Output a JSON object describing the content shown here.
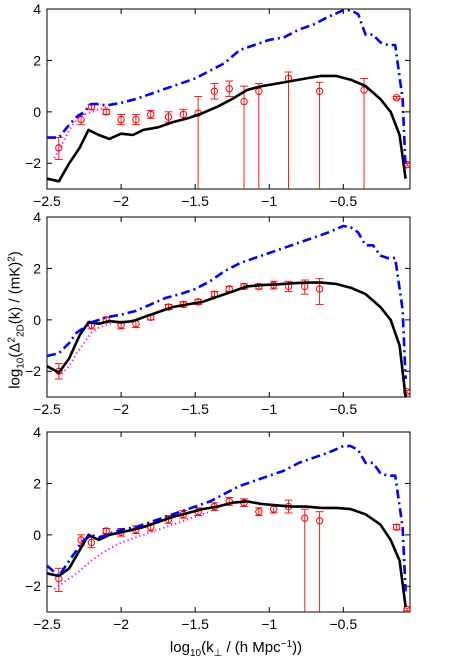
{
  "chart_data": [
    {
      "type": "line",
      "panel": "top",
      "xlim": [
        -2.5,
        -0.05
      ],
      "ylim": [
        -3,
        4
      ],
      "xticks": [
        -2.5,
        -2,
        -1.5,
        -1,
        -0.5
      ],
      "xtick_labels": [
        "−2.5",
        "−2",
        "−1.5",
        "−1",
        "−0.5"
      ],
      "yticks": [
        -2,
        0,
        2,
        4
      ],
      "ytick_labels": [
        "−2",
        "0",
        "2",
        "4"
      ],
      "series": [
        {
          "style": "dashed-blue",
          "color": "#0000ff",
          "x": [
            -2.5,
            -2.42,
            -2.35,
            -2.3,
            -2.25,
            -2.2,
            -2.15,
            -2.1,
            -2.0,
            -1.9,
            -1.8,
            -1.7,
            -1.6,
            -1.5,
            -1.4,
            -1.3,
            -1.2,
            -1.1,
            -1.0,
            -0.9,
            -0.8,
            -0.7,
            -0.6,
            -0.5,
            -0.45,
            -0.4,
            -0.35,
            -0.3,
            -0.25,
            -0.2,
            -0.15,
            -0.1,
            -0.08
          ],
          "y": [
            -1.0,
            -1.0,
            -0.5,
            -0.2,
            0.0,
            0.3,
            0.3,
            0.25,
            0.35,
            0.5,
            0.7,
            0.9,
            1.1,
            1.3,
            1.6,
            1.9,
            2.4,
            2.6,
            2.8,
            2.9,
            3.2,
            3.4,
            3.7,
            3.95,
            3.95,
            3.8,
            3.0,
            3.0,
            2.7,
            2.6,
            2.6,
            0.5,
            -2.2
          ]
        },
        {
          "style": "dotted-magenta",
          "color": "#ff00ff",
          "x": [
            -2.45,
            -2.4,
            -2.35,
            -2.3,
            -2.25,
            -2.2,
            -2.15,
            -2.1
          ],
          "y": [
            -1.8,
            -1.3,
            -0.7,
            -0.3,
            -0.1,
            0.0,
            0.1,
            0.2
          ]
        },
        {
          "style": "solid-black",
          "color": "#000000",
          "x": [
            -2.5,
            -2.42,
            -2.35,
            -2.28,
            -2.22,
            -2.15,
            -2.08,
            -2.0,
            -1.92,
            -1.85,
            -1.75,
            -1.65,
            -1.55,
            -1.45,
            -1.35,
            -1.25,
            -1.15,
            -1.05,
            -0.95,
            -0.85,
            -0.75,
            -0.65,
            -0.55,
            -0.45,
            -0.35,
            -0.25,
            -0.18,
            -0.12,
            -0.08
          ],
          "y": [
            -2.6,
            -2.7,
            -2.0,
            -1.4,
            -0.7,
            -0.9,
            -1.05,
            -0.85,
            -0.9,
            -0.7,
            -0.6,
            -0.4,
            -0.25,
            -0.05,
            0.2,
            0.5,
            0.85,
            1.0,
            1.1,
            1.2,
            1.3,
            1.4,
            1.4,
            1.25,
            1.0,
            0.5,
            0.0,
            -0.9,
            -2.6
          ]
        }
      ],
      "error_points": [
        {
          "x": -2.42,
          "y": -1.4,
          "lo": -1.85,
          "hi": -1.0
        },
        {
          "x": -2.27,
          "y": -0.3,
          "lo": -0.5,
          "hi": -0.1
        },
        {
          "x": -2.2,
          "y": 0.2,
          "lo": 0.1,
          "hi": 0.3
        },
        {
          "x": -2.1,
          "y": 0.0,
          "lo": -0.1,
          "hi": 0.1
        },
        {
          "x": -2.0,
          "y": -0.3,
          "lo": -0.5,
          "hi": -0.1
        },
        {
          "x": -1.9,
          "y": -0.3,
          "lo": -0.5,
          "hi": -0.1
        },
        {
          "x": -1.8,
          "y": -0.1,
          "lo": -0.25,
          "hi": 0.05
        },
        {
          "x": -1.68,
          "y": -0.2,
          "lo": -0.4,
          "hi": 0.0
        },
        {
          "x": -1.58,
          "y": -0.1,
          "lo": -0.3,
          "hi": 0.1
        },
        {
          "x": -1.48,
          "y": -0.05,
          "lo": -3,
          "hi": 0.6
        },
        {
          "x": -1.37,
          "y": 0.8,
          "lo": 0.5,
          "hi": 1.1
        },
        {
          "x": -1.27,
          "y": 0.9,
          "lo": 0.6,
          "hi": 1.2
        },
        {
          "x": -1.17,
          "y": 0.4,
          "lo": -3,
          "hi": 1.0
        },
        {
          "x": -1.07,
          "y": 0.8,
          "lo": -3,
          "hi": 1.1
        },
        {
          "x": -0.87,
          "y": 1.3,
          "lo": -3,
          "hi": 1.55
        },
        {
          "x": -0.66,
          "y": 0.8,
          "lo": -3,
          "hi": 1.15
        },
        {
          "x": -0.36,
          "y": 0.85,
          "lo": -3,
          "hi": 1.3
        },
        {
          "x": -0.14,
          "y": 0.55,
          "lo": 0.5,
          "hi": 0.6
        },
        {
          "x": -0.07,
          "y": -2.05,
          "lo": -2.1,
          "hi": -2.0
        }
      ]
    },
    {
      "type": "line",
      "panel": "middle",
      "xlim": [
        -2.5,
        -0.05
      ],
      "ylim": [
        -3,
        4
      ],
      "xticks": [
        -2.5,
        -2,
        -1.5,
        -1,
        -0.5
      ],
      "xtick_labels": [
        "−2.5",
        "−2",
        "−1.5",
        "−1",
        "−0.5"
      ],
      "yticks": [
        -2,
        0,
        2,
        4
      ],
      "ytick_labels": [
        "−2",
        "0",
        "2",
        "4"
      ],
      "ylabel": "log10(Δ²2D(k) / (mK)²)",
      "series": [
        {
          "style": "dashed-blue",
          "color": "#0000ff",
          "x": [
            -2.5,
            -2.42,
            -2.35,
            -2.3,
            -2.25,
            -2.2,
            -2.15,
            -2.1,
            -2.0,
            -1.9,
            -1.8,
            -1.7,
            -1.6,
            -1.5,
            -1.4,
            -1.3,
            -1.2,
            -1.1,
            -1.0,
            -0.9,
            -0.8,
            -0.7,
            -0.6,
            -0.5,
            -0.45,
            -0.4,
            -0.35,
            -0.3,
            -0.25,
            -0.2,
            -0.15,
            -0.1,
            -0.08
          ],
          "y": [
            -1.4,
            -1.3,
            -0.9,
            -0.5,
            -0.3,
            -0.1,
            0.0,
            0.1,
            0.2,
            0.35,
            0.6,
            0.85,
            1.0,
            1.2,
            1.5,
            1.9,
            2.2,
            2.4,
            2.6,
            2.8,
            3.0,
            3.2,
            3.4,
            3.65,
            3.6,
            3.4,
            2.9,
            2.9,
            2.5,
            2.4,
            2.4,
            0.4,
            -2.3
          ]
        },
        {
          "style": "dotted-magenta",
          "color": "#ff00ff",
          "x": [
            -2.4,
            -2.35,
            -2.3,
            -2.25,
            -2.2,
            -2.15,
            -2.1,
            -2.05,
            -2.0
          ],
          "y": [
            -2.1,
            -1.8,
            -1.3,
            -0.9,
            -0.5,
            -0.3,
            -0.2,
            -0.1,
            -0.05
          ]
        },
        {
          "style": "solid-black",
          "color": "#000000",
          "x": [
            -2.5,
            -2.42,
            -2.35,
            -2.28,
            -2.22,
            -2.15,
            -2.08,
            -2.0,
            -1.92,
            -1.85,
            -1.75,
            -1.65,
            -1.55,
            -1.45,
            -1.35,
            -1.25,
            -1.15,
            -1.05,
            -0.95,
            -0.85,
            -0.75,
            -0.65,
            -0.55,
            -0.45,
            -0.35,
            -0.25,
            -0.18,
            -0.12,
            -0.08
          ],
          "y": [
            -1.8,
            -2.05,
            -1.5,
            -0.6,
            -0.1,
            -0.15,
            -0.05,
            -0.1,
            -0.05,
            0.1,
            0.3,
            0.5,
            0.6,
            0.7,
            0.9,
            1.1,
            1.3,
            1.35,
            1.38,
            1.42,
            1.45,
            1.45,
            1.4,
            1.25,
            1.0,
            0.5,
            0.0,
            -1.0,
            -3.0
          ]
        }
      ],
      "error_points": [
        {
          "x": -2.42,
          "y": -2.0,
          "lo": -2.3,
          "hi": -1.7
        },
        {
          "x": -2.2,
          "y": -0.2,
          "lo": -0.35,
          "hi": -0.05
        },
        {
          "x": -2.1,
          "y": 0.0,
          "lo": -0.1,
          "hi": 0.1
        },
        {
          "x": -2.0,
          "y": -0.2,
          "lo": -0.35,
          "hi": -0.05
        },
        {
          "x": -1.9,
          "y": -0.15,
          "lo": -0.3,
          "hi": 0.0
        },
        {
          "x": -1.8,
          "y": 0.1,
          "lo": 0.0,
          "hi": 0.2
        },
        {
          "x": -1.68,
          "y": 0.5,
          "lo": 0.4,
          "hi": 0.6
        },
        {
          "x": -1.58,
          "y": 0.6,
          "lo": 0.5,
          "hi": 0.7
        },
        {
          "x": -1.48,
          "y": 0.7,
          "lo": 0.6,
          "hi": 0.8
        },
        {
          "x": -1.37,
          "y": 1.0,
          "lo": 0.9,
          "hi": 1.1
        },
        {
          "x": -1.27,
          "y": 1.2,
          "lo": 1.1,
          "hi": 1.3
        },
        {
          "x": -1.17,
          "y": 1.3,
          "lo": 1.2,
          "hi": 1.4
        },
        {
          "x": -1.07,
          "y": 1.3,
          "lo": 1.2,
          "hi": 1.4
        },
        {
          "x": -0.97,
          "y": 1.35,
          "lo": 1.2,
          "hi": 1.5
        },
        {
          "x": -0.87,
          "y": 1.3,
          "lo": 1.1,
          "hi": 1.5
        },
        {
          "x": -0.76,
          "y": 1.3,
          "lo": 1.0,
          "hi": 1.55
        },
        {
          "x": -0.66,
          "y": 1.2,
          "lo": 0.6,
          "hi": 1.6
        },
        {
          "x": -0.07,
          "y": -2.8,
          "lo": -2.85,
          "hi": -2.75
        }
      ]
    },
    {
      "type": "line",
      "panel": "bottom",
      "xlim": [
        -2.5,
        -0.05
      ],
      "ylim": [
        -3,
        4
      ],
      "xticks": [
        -2.5,
        -2,
        -1.5,
        -1,
        -0.5
      ],
      "xtick_labels": [
        "−2.5",
        "−2",
        "−1.5",
        "−1",
        "−0.5"
      ],
      "yticks": [
        -2,
        0,
        2,
        4
      ],
      "ytick_labels": [
        "−2",
        "0",
        "2",
        "4"
      ],
      "xlabel": "log10(k⊥ / (h Mpc⁻¹))",
      "series": [
        {
          "style": "dashed-blue",
          "color": "#0000ff",
          "x": [
            -2.5,
            -2.42,
            -2.35,
            -2.3,
            -2.25,
            -2.2,
            -2.15,
            -2.1,
            -2.0,
            -1.9,
            -1.8,
            -1.7,
            -1.6,
            -1.5,
            -1.4,
            -1.3,
            -1.2,
            -1.1,
            -1.0,
            -0.9,
            -0.8,
            -0.7,
            -0.6,
            -0.5,
            -0.45,
            -0.4,
            -0.35,
            -0.3,
            -0.25,
            -0.2,
            -0.15,
            -0.1,
            -0.08
          ],
          "y": [
            -1.2,
            -1.6,
            -1.0,
            -0.6,
            -0.2,
            0.0,
            -0.1,
            0.0,
            0.2,
            0.3,
            0.5,
            0.7,
            0.9,
            1.1,
            1.3,
            1.6,
            1.9,
            2.1,
            2.3,
            2.5,
            2.8,
            3.0,
            3.2,
            3.45,
            3.45,
            3.3,
            2.8,
            2.8,
            2.4,
            2.3,
            2.3,
            0.3,
            -2.2
          ]
        },
        {
          "style": "dotted-magenta",
          "color": "#ff00ff",
          "x": [
            -2.45,
            -2.4,
            -2.3,
            -2.2,
            -2.1,
            -2.0,
            -1.9,
            -1.8,
            -1.7,
            -1.6,
            -1.5,
            -1.4
          ],
          "y": [
            -2.1,
            -1.9,
            -1.5,
            -1.0,
            -0.6,
            -0.3,
            -0.1,
            0.1,
            0.3,
            0.5,
            0.7,
            0.9
          ]
        },
        {
          "style": "solid-black",
          "color": "#000000",
          "x": [
            -2.5,
            -2.42,
            -2.35,
            -2.28,
            -2.22,
            -2.15,
            -2.08,
            -2.0,
            -1.92,
            -1.85,
            -1.75,
            -1.65,
            -1.55,
            -1.45,
            -1.35,
            -1.25,
            -1.15,
            -1.05,
            -0.95,
            -0.85,
            -0.75,
            -0.65,
            -0.55,
            -0.45,
            -0.35,
            -0.25,
            -0.18,
            -0.12,
            -0.08
          ],
          "y": [
            -1.5,
            -1.6,
            -1.3,
            -0.6,
            0.0,
            -0.2,
            0.0,
            0.1,
            0.2,
            0.3,
            0.5,
            0.7,
            0.85,
            1.0,
            1.1,
            1.25,
            1.3,
            1.2,
            1.15,
            1.1,
            1.1,
            1.05,
            1.05,
            1.0,
            0.8,
            0.4,
            -0.2,
            -1.0,
            -2.8
          ]
        }
      ],
      "error_points": [
        {
          "x": -2.42,
          "y": -1.7,
          "lo": -2.2,
          "hi": -1.3
        },
        {
          "x": -2.27,
          "y": -0.2,
          "lo": -0.4,
          "hi": 0.0
        },
        {
          "x": -2.2,
          "y": -0.3,
          "lo": -0.5,
          "hi": -0.1
        },
        {
          "x": -2.1,
          "y": 0.15,
          "lo": 0.05,
          "hi": 0.25
        },
        {
          "x": -2.0,
          "y": 0.1,
          "lo": -0.05,
          "hi": 0.25
        },
        {
          "x": -1.9,
          "y": 0.2,
          "lo": 0.05,
          "hi": 0.35
        },
        {
          "x": -1.8,
          "y": 0.3,
          "lo": 0.15,
          "hi": 0.45
        },
        {
          "x": -1.68,
          "y": 0.6,
          "lo": 0.45,
          "hi": 0.75
        },
        {
          "x": -1.58,
          "y": 0.8,
          "lo": 0.65,
          "hi": 0.95
        },
        {
          "x": -1.48,
          "y": 0.9,
          "lo": 0.75,
          "hi": 1.05
        },
        {
          "x": -1.37,
          "y": 1.1,
          "lo": 0.95,
          "hi": 1.25
        },
        {
          "x": -1.27,
          "y": 1.3,
          "lo": 1.15,
          "hi": 1.45
        },
        {
          "x": -1.17,
          "y": 1.25,
          "lo": 1.1,
          "hi": 1.4
        },
        {
          "x": -1.07,
          "y": 0.9,
          "lo": 0.75,
          "hi": 1.05
        },
        {
          "x": -0.97,
          "y": 1.0,
          "lo": 0.85,
          "hi": 1.15
        },
        {
          "x": -0.87,
          "y": 1.1,
          "lo": 0.85,
          "hi": 1.35
        },
        {
          "x": -0.76,
          "y": 0.65,
          "lo": -3,
          "hi": 1.0
        },
        {
          "x": -0.66,
          "y": 0.55,
          "lo": -3,
          "hi": 0.9
        },
        {
          "x": -0.14,
          "y": 0.3,
          "lo": 0.2,
          "hi": 0.4
        },
        {
          "x": -0.07,
          "y": -2.9,
          "lo": -2.95,
          "hi": -2.85
        }
      ]
    }
  ]
}
